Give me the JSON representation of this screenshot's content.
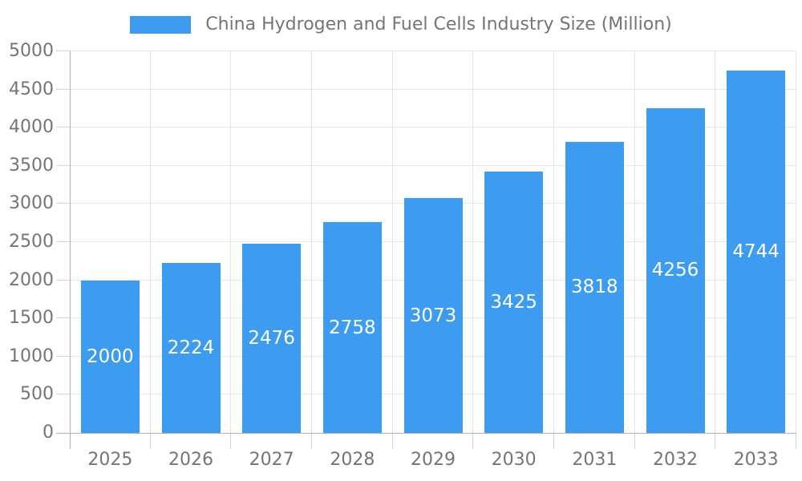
{
  "chart_data": {
    "type": "bar",
    "title": "China Hydrogen and Fuel Cells Industry Size (Million)",
    "categories": [
      "2025",
      "2026",
      "2027",
      "2028",
      "2029",
      "2030",
      "2031",
      "2032",
      "2033"
    ],
    "values": [
      2000,
      2224,
      2476,
      2758,
      3073,
      3425,
      3818,
      4256,
      4744
    ],
    "series_name": "China Hydrogen and Fuel Cells Industry Size (Million)",
    "xlabel": "",
    "ylabel": "",
    "ylim": [
      0,
      5000
    ],
    "ytick_step": 500,
    "ytick_labels": [
      "0",
      "500",
      "1000",
      "1500",
      "2000",
      "2500",
      "3000",
      "3500",
      "4000",
      "4500",
      "5000"
    ],
    "grid": true,
    "legend_position": "top-center",
    "value_label_position": "inside-center",
    "colors": {
      "bar": "#3d9cf0",
      "value_label_text": "#ffffff",
      "axis_text": "#757575",
      "title_text": "#757575",
      "gridline": "#e5e5e5",
      "axis_line": "#b0b0b0",
      "tick_line": "#d4d4d4",
      "background": "#ffffff"
    }
  }
}
